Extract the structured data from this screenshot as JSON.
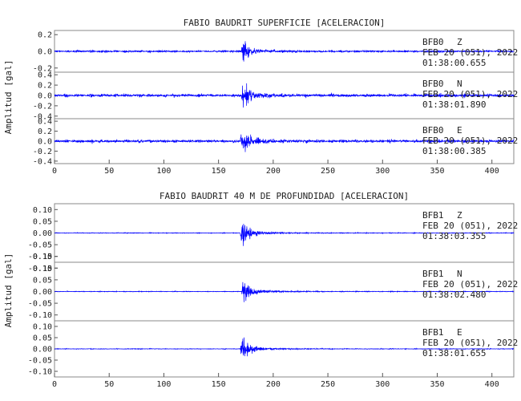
{
  "chart_data": [
    {
      "type": "line",
      "title": "FABIO BAUDRIT SUPERFICIE [ACELERACION]",
      "ylabel": "Amplitud [gal]",
      "xlim": [
        0,
        420
      ],
      "x_ticks": [
        "0",
        "50",
        "100",
        "150",
        "200",
        "250",
        "300",
        "350",
        "400"
      ],
      "line_color": "#0000ff",
      "channels": [
        {
          "station": "BFB0",
          "component": "Z",
          "date": "FEB 20 (051), 2022",
          "time": "01:38:00.655",
          "ylim": [
            -0.25,
            0.25
          ],
          "y_ticks": [
            "0.2",
            "0.0",
            "-0.2"
          ],
          "onset": 171,
          "peak": 0.19,
          "noise": 0.012
        },
        {
          "station": "BFB0",
          "component": "N",
          "date": "FEB 20 (051), 2022",
          "time": "01:38:01.890",
          "ylim": [
            -0.45,
            0.45
          ],
          "y_ticks": [
            "0.4",
            "0.2",
            "0.0",
            "-0.2",
            "-0.4"
          ],
          "onset": 171,
          "peak": 0.36,
          "noise": 0.03
        },
        {
          "station": "BFB0",
          "component": "E",
          "date": "FEB 20 (051), 2022",
          "time": "01:38:00.385",
          "ylim": [
            -0.45,
            0.45
          ],
          "y_ticks": [
            "0.4",
            "0.2",
            "0.0",
            "-0.2",
            "-0.4"
          ],
          "onset": 170,
          "peak": 0.34,
          "noise": 0.03
        }
      ]
    },
    {
      "type": "line",
      "title": "FABIO BAUDRIT 40 M DE PROFUNDIDAD [ACELERACION]",
      "ylabel": "Amplitud [gal]",
      "xlim": [
        0,
        420
      ],
      "x_ticks": [
        "0",
        "50",
        "100",
        "150",
        "200",
        "250",
        "300",
        "350",
        "400"
      ],
      "line_color": "#0000ff",
      "channels": [
        {
          "station": "BFB1",
          "component": "Z",
          "date": "FEB 20 (051), 2022",
          "time": "01:38:03.355",
          "ylim": [
            -0.125,
            0.125
          ],
          "y_ticks": [
            "0.10",
            "0.05",
            "0.00",
            "-0.05",
            "-0.10",
            "-0.15"
          ],
          "onset": 170,
          "peak": 0.1,
          "noise": 0.0015
        },
        {
          "station": "BFB1",
          "component": "N",
          "date": "FEB 20 (051), 2022",
          "time": "01:38:02.480",
          "ylim": [
            -0.125,
            0.125
          ],
          "y_ticks": [
            "0.15",
            "0.10",
            "0.05",
            "0.00",
            "-0.05",
            "-0.10"
          ],
          "onset": 171,
          "peak": 0.085,
          "noise": 0.0015
        },
        {
          "station": "BFB1",
          "component": "E",
          "date": "FEB 20 (051), 2022",
          "time": "01:38:01.655",
          "ylim": [
            -0.125,
            0.125
          ],
          "y_ticks": [
            "0.10",
            "0.05",
            "0.00",
            "-0.05",
            "-0.10"
          ],
          "onset": 170,
          "peak": 0.085,
          "noise": 0.0015
        }
      ]
    }
  ]
}
